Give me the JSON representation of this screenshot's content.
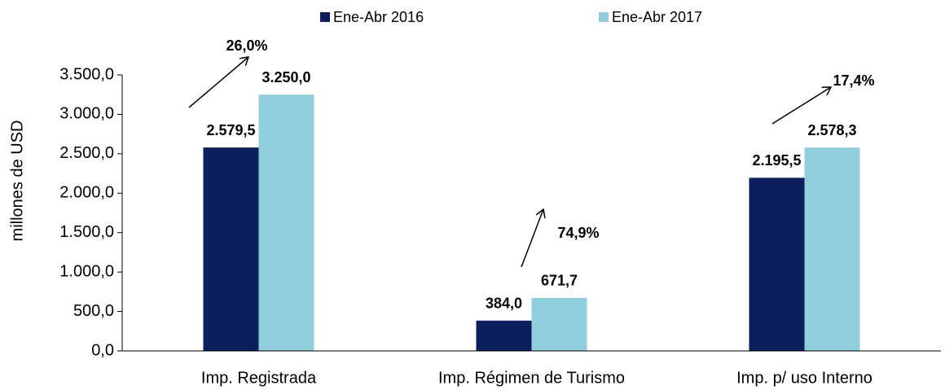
{
  "chart_data": {
    "type": "bar",
    "y_label": "millones de USD",
    "categories": [
      "Imp. Registrada",
      "Imp. Régimen de Turismo",
      "Imp. p/ uso Interno"
    ],
    "series": [
      {
        "name": "Ene-Abr 2016",
        "color": "#0c1f5c",
        "values": [
          2579.5,
          384.0,
          2195.5
        ],
        "value_labels": [
          "2.579,5",
          "384,0",
          "2.195,5"
        ]
      },
      {
        "name": "Ene-Abr 2017",
        "color": "#92cddc",
        "values": [
          3250.0,
          671.7,
          2578.3
        ],
        "value_labels": [
          "3.250,0",
          "671,7",
          "2.578,3"
        ]
      }
    ],
    "annotations": [
      "26,0%",
      "74,9%",
      "17,4%"
    ],
    "ylim": [
      0,
      3500
    ],
    "yticks": [
      {
        "value": 0,
        "label": "0,0"
      },
      {
        "value": 500,
        "label": "500,0"
      },
      {
        "value": 1000,
        "label": "1.000,0"
      },
      {
        "value": 1500,
        "label": "1.500,0"
      },
      {
        "value": 2000,
        "label": "2.000,0"
      },
      {
        "value": 2500,
        "label": "2.500,0"
      },
      {
        "value": 3000,
        "label": "3.000,0"
      },
      {
        "value": 3500,
        "label": "3.500,0"
      }
    ],
    "legend": "top"
  }
}
